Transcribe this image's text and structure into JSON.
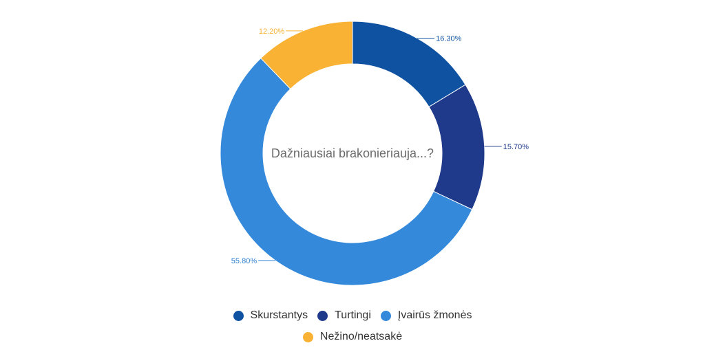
{
  "chart_data": {
    "type": "pie",
    "variant": "donut",
    "title": "Dažniausiai brakonieriauja...?",
    "series": [
      {
        "name": "Skurstantys",
        "value": 16.3,
        "label": "16.30%",
        "color": "#0f52a2"
      },
      {
        "name": "Turtingi",
        "value": 15.7,
        "label": "15.70%",
        "color": "#1f3a8a"
      },
      {
        "name": "Įvairūs žmonės",
        "value": 55.8,
        "label": "55.80%",
        "color": "#3489db"
      },
      {
        "name": "Nežino/neatsakė",
        "value": 12.2,
        "label": "12.20%",
        "color": "#f9b233"
      }
    ],
    "legend_position": "bottom",
    "label_color_for_light_slice": "#2f7fd0"
  }
}
